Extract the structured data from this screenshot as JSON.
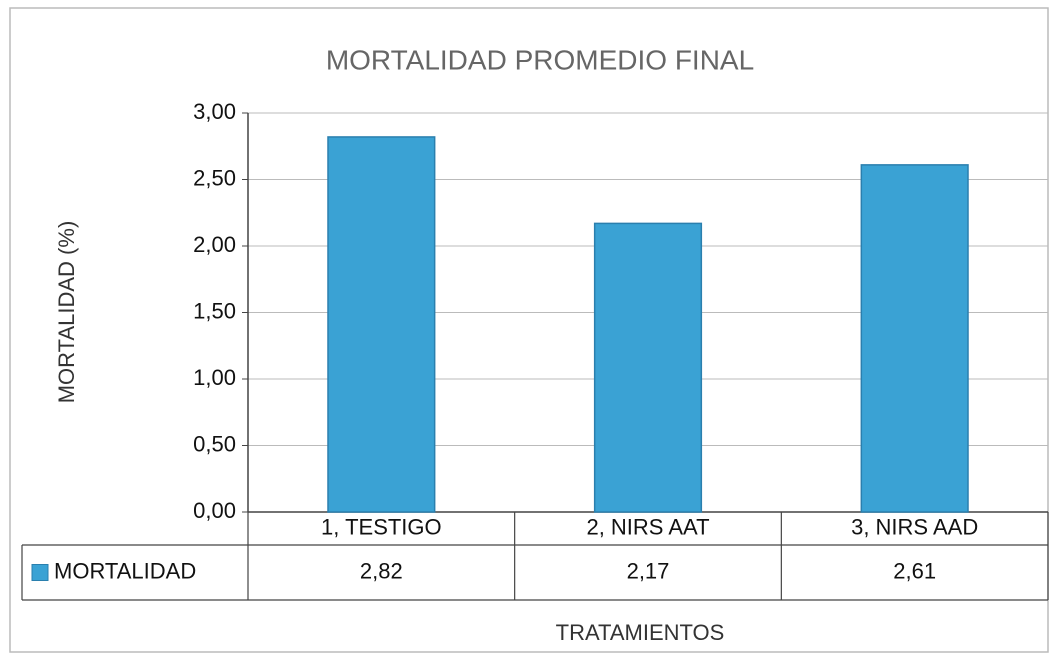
{
  "chart_data": {
    "type": "bar",
    "title": "MORTALIDAD PROMEDIO FINAL",
    "y_label": "MORTALIDAD (%)",
    "x_label": "TRATAMIENTOS",
    "categories": [
      "1, TESTIGO",
      "2, NIRS AAT",
      "3, NIRS AAD"
    ],
    "series": [
      {
        "name": "MORTALIDAD",
        "color": "#3aa2d4",
        "values": [
          2.82,
          2.17,
          2.61
        ],
        "value_labels": [
          "2,82",
          "2,17",
          "2,61"
        ]
      }
    ],
    "ylim": [
      0,
      3
    ],
    "yticks": [
      {
        "value": 0,
        "label": "0,00"
      },
      {
        "value": 0.5,
        "label": "0,50"
      },
      {
        "value": 1,
        "label": "1,00"
      },
      {
        "value": 1.5,
        "label": "1,50"
      },
      {
        "value": 2,
        "label": "2,00"
      },
      {
        "value": 2.5,
        "label": "2,50"
      },
      {
        "value": 3,
        "label": "3,00"
      }
    ],
    "grid": true
  }
}
